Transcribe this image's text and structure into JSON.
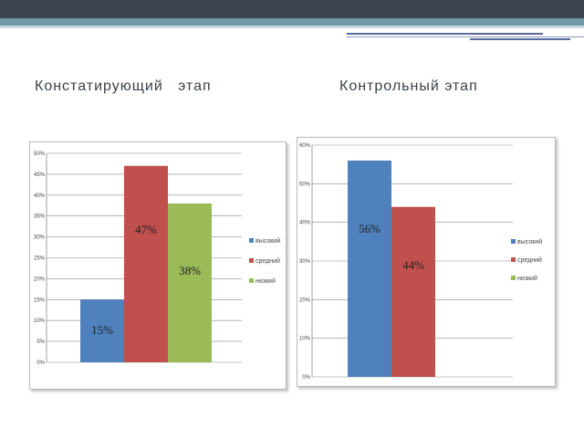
{
  "slide": {
    "title_left": "Констатирующий   этап",
    "title_right": "Контрольный этап",
    "colors": {
      "header": "#3c4450",
      "accent": "#6f9aa5"
    }
  },
  "chart_data": [
    {
      "type": "bar",
      "categories": [
        "высокий",
        "средний",
        "низкий"
      ],
      "values": [
        15,
        47,
        38
      ],
      "value_labels": [
        "15%",
        "47%",
        "38%"
      ],
      "colors": [
        "#4f81bd",
        "#c0504d",
        "#9bbb59"
      ],
      "ylim": [
        0,
        50
      ],
      "yticks": [
        0,
        5,
        10,
        15,
        20,
        25,
        30,
        35,
        40,
        45,
        50
      ],
      "ytick_labels": [
        "0%",
        "5%",
        "10%",
        "15%",
        "20%",
        "25%",
        "30%",
        "35%",
        "40%",
        "45%",
        "50%"
      ],
      "legend": [
        "высокий",
        "средний",
        "низкий"
      ],
      "legend_position": "right",
      "grid": true
    },
    {
      "type": "bar",
      "categories": [
        "высокий",
        "средний",
        "низкий"
      ],
      "values": [
        56,
        44,
        0
      ],
      "value_labels": [
        "56%",
        "44%",
        ""
      ],
      "colors": [
        "#4f81bd",
        "#c0504d",
        "#9bbb59"
      ],
      "ylim": [
        0,
        60
      ],
      "yticks": [
        0,
        10,
        20,
        30,
        40,
        50,
        60
      ],
      "ytick_labels": [
        "0%",
        "10%",
        "20%",
        "30%",
        "40%",
        "50%",
        "60%"
      ],
      "legend": [
        "высокий",
        "средний",
        "низкий"
      ],
      "legend_position": "right",
      "grid": true
    }
  ]
}
